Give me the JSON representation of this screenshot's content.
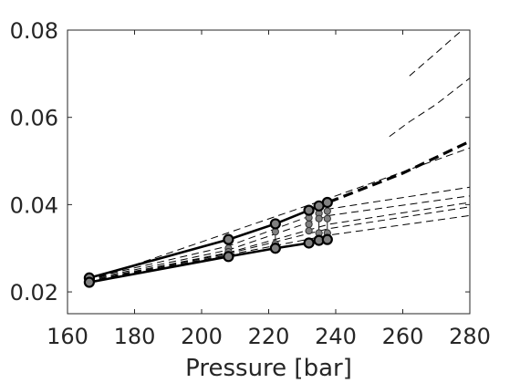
{
  "chart_data": {
    "type": "line",
    "title": "",
    "xlabel": "Pressure [bar]",
    "ylabel": "",
    "xlim": [
      160,
      280
    ],
    "ylim": [
      0.015,
      0.08
    ],
    "xticks": [
      160,
      180,
      200,
      220,
      240,
      260,
      280
    ],
    "yticks": [
      0.02,
      0.04,
      0.06,
      0.08
    ],
    "xtick_labels": [
      "160",
      "180",
      "200",
      "220",
      "240",
      "260",
      "280"
    ],
    "ytick_labels": [
      "0.02",
      "0.04",
      "0.06",
      "0.08"
    ],
    "grid": false,
    "colors": {
      "line": "#000000",
      "marker_fill": "#808080",
      "axis": "#262626"
    },
    "series": [
      {
        "style": "solid-bold",
        "marker": "open-circle",
        "x": [
          166.5,
          208,
          222,
          232,
          235
        ],
        "y": [
          0.0232,
          0.032,
          0.0356,
          0.0387,
          0.0397
        ]
      },
      {
        "style": "solid",
        "marker": "open-circle",
        "x": [
          237.5
        ],
        "y": [
          0.0405
        ]
      },
      {
        "style": "solid-bold",
        "marker": "open-circle",
        "x": [
          166.5,
          208,
          222,
          232,
          235,
          237.5
        ],
        "y": [
          0.0222,
          0.0281,
          0.03,
          0.0312,
          0.0318,
          0.032
        ]
      },
      {
        "style": "dashed-bold",
        "marker": "none",
        "x": [
          238,
          260,
          280
        ],
        "y": [
          0.0406,
          0.0472,
          0.0545
        ]
      },
      {
        "style": "dashed",
        "marker": "none",
        "x": [
          166,
          240,
          280
        ],
        "y": [
          0.0225,
          0.042,
          0.053
        ]
      },
      {
        "style": "dashed",
        "marker": "none",
        "x": [
          256,
          262,
          270,
          280
        ],
        "y": [
          0.0556,
          0.059,
          0.063,
          0.069
        ]
      },
      {
        "style": "dashed",
        "marker": "none",
        "x": [
          262,
          270,
          275,
          278.5
        ],
        "y": [
          0.0695,
          0.0748,
          0.0782,
          0.0805
        ]
      },
      {
        "style": "dashed",
        "marker": "none",
        "x": [
          166,
          208,
          238,
          280
        ],
        "y": [
          0.023,
          0.0305,
          0.039,
          0.044
        ]
      },
      {
        "style": "dashed",
        "marker": "none",
        "x": [
          166,
          208,
          238,
          280
        ],
        "y": [
          0.0228,
          0.0296,
          0.0375,
          0.042
        ]
      },
      {
        "style": "dashed",
        "marker": "none",
        "x": [
          166,
          208,
          238,
          280
        ],
        "y": [
          0.0226,
          0.029,
          0.0355,
          0.0405
        ]
      },
      {
        "style": "dashed",
        "marker": "none",
        "x": [
          166,
          208,
          238,
          280
        ],
        "y": [
          0.0224,
          0.0288,
          0.0345,
          0.0395
        ]
      },
      {
        "style": "dashed",
        "marker": "none",
        "x": [
          166,
          208,
          238,
          280
        ],
        "y": [
          0.0223,
          0.0285,
          0.033,
          0.0375
        ]
      },
      {
        "style": "solid-thin",
        "marker": "filled-circle",
        "x": [
          208,
          208,
          222,
          222,
          232,
          232,
          232,
          235,
          235,
          235,
          237.5,
          237.5,
          237.5
        ],
        "y": [
          0.03,
          0.0292,
          0.0338,
          0.031,
          0.037,
          0.0355,
          0.034,
          0.038,
          0.0368,
          0.0335,
          0.0385,
          0.0368,
          0.0335
        ]
      }
    ]
  }
}
